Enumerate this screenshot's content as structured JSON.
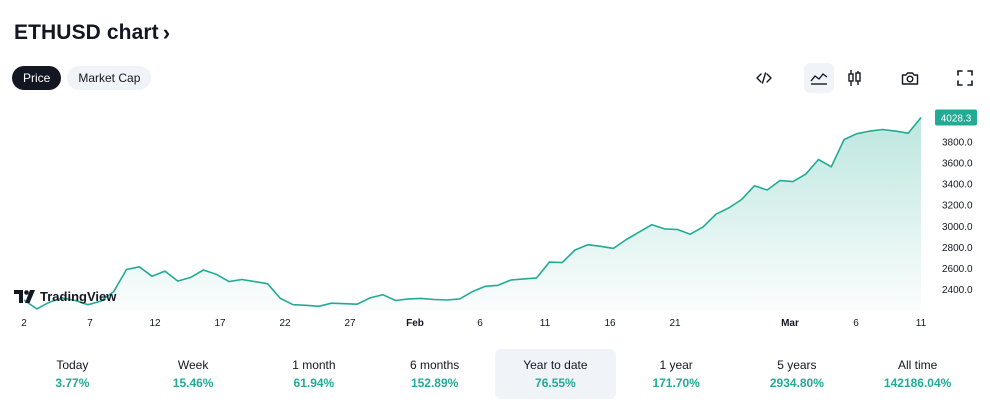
{
  "header": {
    "title": "ETHUSD chart",
    "title_chevron": "›"
  },
  "toggle": {
    "items": [
      {
        "label": "Price",
        "active": true
      },
      {
        "label": "Market Cap",
        "active": false
      }
    ]
  },
  "toolbar": {
    "icons": [
      "embed-icon",
      "area-chart-icon",
      "candles-icon",
      "camera-icon",
      "fullscreen-icon"
    ]
  },
  "watermark": {
    "text": "TradingView"
  },
  "colors": {
    "line": "#22ab94",
    "fill_top": "#22ab94",
    "badge": "#22ab94",
    "text": "#131722",
    "muted": "#6a6d78"
  },
  "chart_data": {
    "type": "area",
    "x_ticks": [
      "2",
      "7",
      "12",
      "17",
      "22",
      "27",
      "Feb",
      "6",
      "11",
      "16",
      "21",
      "Mar",
      "6",
      "11"
    ],
    "y_ticks": [
      "2400.0",
      "2600.0",
      "2800.0",
      "3000.0",
      "3200.0",
      "3400.0",
      "3600.0",
      "3800.0"
    ],
    "last_value_label": "4028.3",
    "ylim": [
      2200,
      4100
    ],
    "series": [
      {
        "values": [
          2295,
          2210,
          2275,
          2315,
          2290,
          2250,
          2285,
          2375,
          2585,
          2610,
          2520,
          2570,
          2475,
          2510,
          2580,
          2540,
          2470,
          2490,
          2470,
          2450,
          2310,
          2250,
          2245,
          2235,
          2265,
          2260,
          2255,
          2315,
          2345,
          2290,
          2305,
          2310,
          2300,
          2295,
          2305,
          2375,
          2425,
          2435,
          2485,
          2495,
          2505,
          2655,
          2650,
          2770,
          2820,
          2805,
          2785,
          2870,
          2940,
          3010,
          2970,
          2965,
          2920,
          2990,
          3110,
          3170,
          3250,
          3380,
          3340,
          3430,
          3420,
          3490,
          3630,
          3560,
          3820,
          3875,
          3900,
          3915,
          3900,
          3880,
          4028.3
        ]
      }
    ]
  },
  "periods": [
    {
      "label": "Today",
      "value": "3.77%",
      "active": false
    },
    {
      "label": "Week",
      "value": "15.46%",
      "active": false
    },
    {
      "label": "1 month",
      "value": "61.94%",
      "active": false
    },
    {
      "label": "6 months",
      "value": "152.89%",
      "active": false
    },
    {
      "label": "Year to date",
      "value": "76.55%",
      "active": true
    },
    {
      "label": "1 year",
      "value": "171.70%",
      "active": false
    },
    {
      "label": "5 years",
      "value": "2934.80%",
      "active": false
    },
    {
      "label": "All time",
      "value": "142186.04%",
      "active": false
    }
  ]
}
